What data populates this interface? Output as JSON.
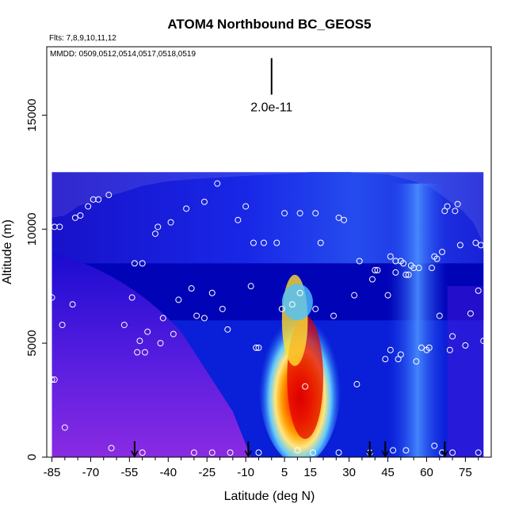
{
  "chart_data": {
    "type": "heatmap",
    "title": "ATOM4 Northbound BC_GEOS5",
    "subtitle_flights": "Flts: 7,8,9,10,11,12",
    "subtitle_dates": "MMDD: 0509,0512,0514,0517,0518,0519",
    "xlabel": "Latitude (deg N)",
    "ylabel": "Altitude (m)",
    "xlim": [
      -87,
      85
    ],
    "ylim": [
      0,
      18000
    ],
    "x_ticks": [
      -85,
      -70,
      -55,
      -40,
      -25,
      -10,
      5,
      15,
      30,
      45,
      60,
      75
    ],
    "y_ticks": [
      0,
      5000,
      10000,
      15000
    ],
    "scale_bar_label": "2.0e-11",
    "scale_bar_range": [
      15900,
      17500
    ],
    "grid": false,
    "legend": "none",
    "colors": {
      "background_blue": "#0a1fd8",
      "deep_blue": "#0000b0",
      "purple": "#8a2be2",
      "cyan": "#4fc3ff",
      "yellow": "#ffe030",
      "orange": "#ff8000",
      "red": "#e00000",
      "marker": "#ffffff"
    },
    "profile_arrows_lat": [
      -53,
      -9,
      38,
      44,
      67
    ],
    "flight_samples": [
      {
        "lat": -85,
        "alt": 7000
      },
      {
        "lat": -84,
        "alt": 10100
      },
      {
        "lat": -82,
        "alt": 10100
      },
      {
        "lat": -85,
        "alt": 3400
      },
      {
        "lat": -80,
        "alt": 1300
      },
      {
        "lat": -81,
        "alt": 5800
      },
      {
        "lat": -77,
        "alt": 6700
      },
      {
        "lat": -76,
        "alt": 10500
      },
      {
        "lat": -74,
        "alt": 10600
      },
      {
        "lat": -71,
        "alt": 11000
      },
      {
        "lat": -69,
        "alt": 11300
      },
      {
        "lat": -67,
        "alt": 11300
      },
      {
        "lat": -63,
        "alt": 11500
      },
      {
        "lat": -57,
        "alt": 5800
      },
      {
        "lat": -54,
        "alt": 7000
      },
      {
        "lat": -53,
        "alt": 8500
      },
      {
        "lat": -52,
        "alt": 4600
      },
      {
        "lat": -51,
        "alt": 5100
      },
      {
        "lat": -50,
        "alt": 8500
      },
      {
        "lat": -49,
        "alt": 4600
      },
      {
        "lat": -48,
        "alt": 5500
      },
      {
        "lat": -45,
        "alt": 9800
      },
      {
        "lat": -44,
        "alt": 10100
      },
      {
        "lat": -43,
        "alt": 5000
      },
      {
        "lat": -42,
        "alt": 6100
      },
      {
        "lat": -39,
        "alt": 10300
      },
      {
        "lat": -38,
        "alt": 5400
      },
      {
        "lat": -36,
        "alt": 6900
      },
      {
        "lat": -33,
        "alt": 10900
      },
      {
        "lat": -31,
        "alt": 7400
      },
      {
        "lat": -29,
        "alt": 6200
      },
      {
        "lat": -26,
        "alt": 11200
      },
      {
        "lat": -26,
        "alt": 6100
      },
      {
        "lat": -23,
        "alt": 7200
      },
      {
        "lat": -21,
        "alt": 12000
      },
      {
        "lat": -19,
        "alt": 6500
      },
      {
        "lat": -17,
        "alt": 5600
      },
      {
        "lat": -13,
        "alt": 10400
      },
      {
        "lat": -10,
        "alt": 11000
      },
      {
        "lat": -8,
        "alt": 7500
      },
      {
        "lat": -7,
        "alt": 9400
      },
      {
        "lat": -6,
        "alt": 4800
      },
      {
        "lat": -5,
        "alt": 4800
      },
      {
        "lat": -3,
        "alt": 9400
      },
      {
        "lat": 2,
        "alt": 9400
      },
      {
        "lat": 4,
        "alt": 6500
      },
      {
        "lat": 5,
        "alt": 10700
      },
      {
        "lat": 8,
        "alt": 6700
      },
      {
        "lat": 11,
        "alt": 10700
      },
      {
        "lat": 11,
        "alt": 7200
      },
      {
        "lat": 13,
        "alt": 3100
      },
      {
        "lat": 17,
        "alt": 10700
      },
      {
        "lat": 17,
        "alt": 6500
      },
      {
        "lat": 19,
        "alt": 9400
      },
      {
        "lat": 24,
        "alt": 6200
      },
      {
        "lat": 26,
        "alt": 10500
      },
      {
        "lat": 28,
        "alt": 10400
      },
      {
        "lat": 32,
        "alt": 7100
      },
      {
        "lat": 33,
        "alt": 3200
      },
      {
        "lat": 34,
        "alt": 8600
      },
      {
        "lat": 39,
        "alt": 7800
      },
      {
        "lat": 40,
        "alt": 8200
      },
      {
        "lat": 41,
        "alt": 8200
      },
      {
        "lat": 44,
        "alt": 4300
      },
      {
        "lat": 45,
        "alt": 7100
      },
      {
        "lat": 46,
        "alt": 8800
      },
      {
        "lat": 46,
        "alt": 4700
      },
      {
        "lat": 48,
        "alt": 8600
      },
      {
        "lat": 48,
        "alt": 8100
      },
      {
        "lat": 49,
        "alt": 4300
      },
      {
        "lat": 50,
        "alt": 8600
      },
      {
        "lat": 50,
        "alt": 4500
      },
      {
        "lat": 51,
        "alt": 8500
      },
      {
        "lat": 52,
        "alt": 8000
      },
      {
        "lat": 53,
        "alt": 8000
      },
      {
        "lat": 54,
        "alt": 8400
      },
      {
        "lat": 55,
        "alt": 8300
      },
      {
        "lat": 56,
        "alt": 4200
      },
      {
        "lat": 57,
        "alt": 8300
      },
      {
        "lat": 58,
        "alt": 4800
      },
      {
        "lat": 60,
        "alt": 4700
      },
      {
        "lat": 61,
        "alt": 4800
      },
      {
        "lat": 62,
        "alt": 8300
      },
      {
        "lat": 63,
        "alt": 8800
      },
      {
        "lat": 64,
        "alt": 8700
      },
      {
        "lat": 65,
        "alt": 6200
      },
      {
        "lat": 66,
        "alt": 9000
      },
      {
        "lat": 67,
        "alt": 10800
      },
      {
        "lat": 68,
        "alt": 11000
      },
      {
        "lat": 69,
        "alt": 4700
      },
      {
        "lat": 70,
        "alt": 5300
      },
      {
        "lat": 71,
        "alt": 10800
      },
      {
        "lat": 72,
        "alt": 11100
      },
      {
        "lat": 73,
        "alt": 9300
      },
      {
        "lat": 75,
        "alt": 4900
      },
      {
        "lat": 77,
        "alt": 6300
      },
      {
        "lat": 79,
        "alt": 9400
      },
      {
        "lat": 80,
        "alt": 7300
      },
      {
        "lat": 81,
        "alt": 9300
      },
      {
        "lat": 82,
        "alt": 5100
      },
      {
        "lat": -62,
        "alt": 400
      },
      {
        "lat": -50,
        "alt": 200
      },
      {
        "lat": -30,
        "alt": 200
      },
      {
        "lat": -23,
        "alt": 200
      },
      {
        "lat": -16,
        "alt": 200
      },
      {
        "lat": -5,
        "alt": 200
      },
      {
        "lat": 10,
        "alt": 300
      },
      {
        "lat": 16,
        "alt": 200
      },
      {
        "lat": 26,
        "alt": 200
      },
      {
        "lat": 38,
        "alt": 200
      },
      {
        "lat": 47,
        "alt": 300
      },
      {
        "lat": 52,
        "alt": 300
      },
      {
        "lat": 63,
        "alt": 500
      },
      {
        "lat": 66,
        "alt": 200
      },
      {
        "lat": 70,
        "alt": 200
      },
      {
        "lat": 80,
        "alt": 200
      },
      {
        "lat": -84,
        "alt": 3400
      }
    ]
  }
}
